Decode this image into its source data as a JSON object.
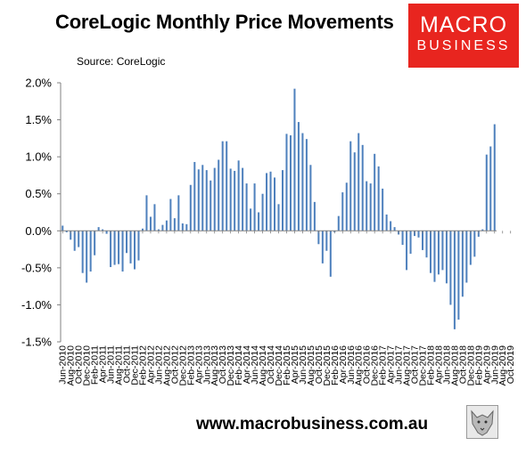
{
  "header": {
    "title": "CoreLogic Monthly Price Movements",
    "source": "Source: CoreLogic"
  },
  "logo": {
    "line1": "MACRO",
    "line2": "BUSINESS",
    "color": "#e8251f"
  },
  "footer": {
    "url": "www.macrobusiness.com.au"
  },
  "colors": {
    "bar": "#4f81bd",
    "axis": "#808080"
  },
  "chart_data": {
    "type": "bar",
    "title": "CoreLogic Monthly Price Movements",
    "ylim": [
      -1.5,
      2.0
    ],
    "yticks": [
      -1.5,
      -1.0,
      -0.5,
      0.0,
      0.5,
      1.0,
      1.5,
      2.0
    ],
    "ytick_labels": [
      "-1.5%",
      "-1.0%",
      "-0.5%",
      "0.0%",
      "0.5%",
      "1.0%",
      "1.5%",
      "2.0%"
    ],
    "grid": false,
    "legend": "none",
    "x_tick_labels": [
      "Jun-2010",
      "Aug-2010",
      "Oct-2010",
      "Dec-2010",
      "Feb-2011",
      "Apr-2011",
      "Jun-2011",
      "Aug-2011",
      "Oct-2011",
      "Dec-2011",
      "Feb-2012",
      "Apr-2012",
      "Jun-2012",
      "Aug-2012",
      "Oct-2012",
      "Dec-2012",
      "Feb-2013",
      "Apr-2013",
      "Jun-2013",
      "Aug-2013",
      "Oct-2013",
      "Dec-2013",
      "Feb-2014",
      "Apr-2014",
      "Jun-2014",
      "Aug-2014",
      "Oct-2014",
      "Dec-2014",
      "Feb-2015",
      "Apr-2015",
      "Jun-2015",
      "Aug-2015",
      "Oct-2015",
      "Dec-2015",
      "Feb-2016",
      "Apr-2016",
      "Jun-2016",
      "Aug-2016",
      "Oct-2016",
      "Dec-2016",
      "Feb-2017",
      "Apr-2017",
      "Jun-2017",
      "Aug-2017",
      "Oct-2017",
      "Dec-2017",
      "Feb-2018",
      "Apr-2018",
      "Jun-2018",
      "Aug-2018",
      "Oct-2018",
      "Dec-2018",
      "Feb-2019",
      "Apr-2019",
      "Jun-2019",
      "Aug-2019",
      "Oct-2019"
    ],
    "values": [
      0.07,
      -0.02,
      -0.12,
      -0.27,
      -0.22,
      -0.57,
      -0.7,
      -0.55,
      -0.33,
      0.05,
      0.02,
      -0.04,
      -0.49,
      -0.46,
      -0.45,
      -0.55,
      -0.3,
      -0.44,
      -0.52,
      -0.4,
      0.03,
      0.48,
      0.19,
      0.36,
      0.02,
      0.08,
      0.14,
      0.43,
      0.17,
      0.48,
      0.1,
      0.09,
      0.62,
      0.93,
      0.83,
      0.89,
      0.82,
      0.68,
      0.85,
      0.96,
      1.21,
      1.21,
      0.84,
      0.81,
      0.95,
      0.85,
      0.64,
      0.3,
      0.64,
      0.25,
      0.5,
      0.78,
      0.8,
      0.72,
      0.36,
      0.82,
      1.31,
      1.29,
      1.92,
      1.47,
      1.32,
      1.24,
      0.89,
      0.39,
      -0.18,
      -0.44,
      -0.27,
      -0.62,
      -0.02,
      0.2,
      0.52,
      0.65,
      1.21,
      1.06,
      1.32,
      1.16,
      0.67,
      0.64,
      1.04,
      0.87,
      0.57,
      0.22,
      0.13,
      0.05,
      -0.05,
      -0.19,
      -0.53,
      -0.31,
      -0.07,
      -0.09,
      -0.26,
      -0.36,
      -0.57,
      -0.69,
      -0.59,
      -0.53,
      -0.71,
      -1.0,
      -1.33,
      -1.2,
      -0.89,
      -0.7,
      -0.46,
      -0.35,
      -0.08,
      0.02,
      1.03,
      1.14,
      1.44
    ]
  }
}
